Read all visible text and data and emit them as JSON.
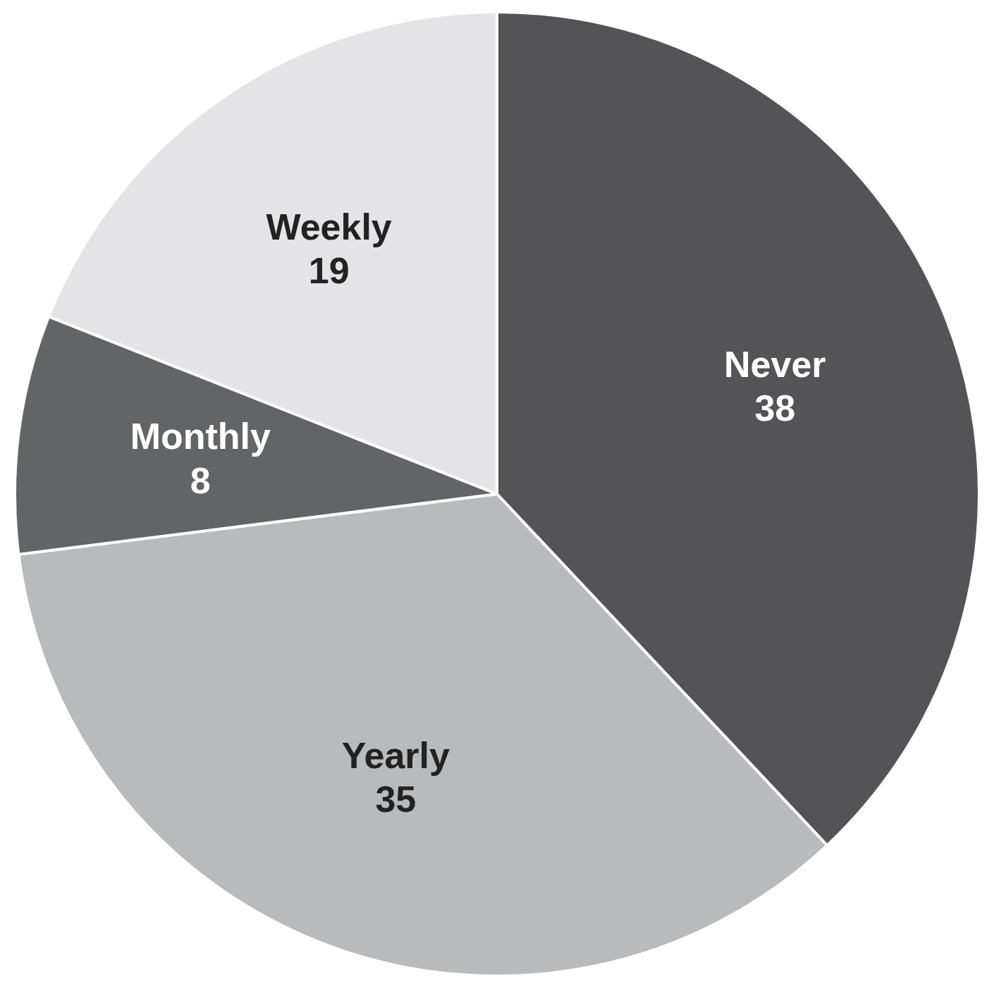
{
  "chart_data": {
    "type": "pie",
    "categories": [
      "Never",
      "Yearly",
      "Monthly",
      "Weekly"
    ],
    "values": [
      38,
      35,
      8,
      19
    ],
    "colors": [
      "#545457",
      "#b9babc",
      "#636466",
      "#e4e4e6"
    ],
    "data_labels": true
  }
}
